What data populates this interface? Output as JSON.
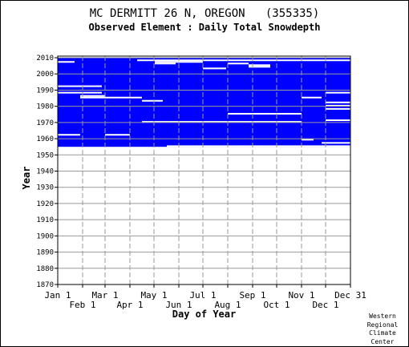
{
  "chart_data": {
    "type": "heatmap",
    "title": "MC DERMITT 26 N, OREGON   (355335)",
    "subtitle": "Observed Element : Daily Total Snowdepth",
    "xlabel": "Day of Year",
    "ylabel": "Year",
    "ylim": [
      1870,
      2011
    ],
    "xlim": [
      1,
      366
    ],
    "y_ticks": [
      2010,
      2000,
      1990,
      1980,
      1970,
      1960,
      1950,
      1940,
      1930,
      1920,
      1910,
      1900,
      1890,
      1880,
      1870
    ],
    "x_ticks_top_row": [
      {
        "label": "Jan 1",
        "day": 1
      },
      {
        "label": "Mar 1",
        "day": 60
      },
      {
        "label": "May 1",
        "day": 121
      },
      {
        "label": "Jul 1",
        "day": 182
      },
      {
        "label": "Sep 1",
        "day": 244
      },
      {
        "label": "Nov 1",
        "day": 305
      },
      {
        "label": "Dec 31",
        "day": 366
      }
    ],
    "x_ticks_bottom_row": [
      {
        "label": "Feb 1",
        "day": 32
      },
      {
        "label": "Apr 1",
        "day": 91
      },
      {
        "label": "Jun 1",
        "day": 152
      },
      {
        "label": "Aug 1",
        "day": 213
      },
      {
        "label": "Oct 1",
        "day": 274
      },
      {
        "label": "Dec 1",
        "day": 335
      }
    ],
    "data_coverage": {
      "start_year": 1955,
      "end_year": 2011,
      "color": "#0000ff"
    },
    "missing_gaps": [
      {
        "year": 2010,
        "start_day": 1,
        "end_day": 366
      },
      {
        "year": 2008,
        "start_day": 100,
        "end_day": 366
      },
      {
        "year": 2007,
        "start_day": 1,
        "end_day": 22
      },
      {
        "year": 2007,
        "start_day": 122,
        "end_day": 148
      },
      {
        "year": 2007,
        "start_day": 148,
        "end_day": 182
      },
      {
        "year": 2006,
        "start_day": 122,
        "end_day": 148
      },
      {
        "year": 2006,
        "start_day": 213,
        "end_day": 239
      },
      {
        "year": 2005,
        "start_day": 239,
        "end_day": 266
      },
      {
        "year": 2004,
        "start_day": 239,
        "end_day": 266
      },
      {
        "year": 2003,
        "start_day": 182,
        "end_day": 211
      },
      {
        "year": 1992,
        "start_day": 1,
        "end_day": 56
      },
      {
        "year": 1988,
        "start_day": 1,
        "end_day": 56
      },
      {
        "year": 1988,
        "start_day": 335,
        "end_day": 366
      },
      {
        "year": 1986,
        "start_day": 29,
        "end_day": 60
      },
      {
        "year": 1985,
        "start_day": 29,
        "end_day": 106
      },
      {
        "year": 1985,
        "start_day": 305,
        "end_day": 330
      },
      {
        "year": 1983,
        "start_day": 106,
        "end_day": 132
      },
      {
        "year": 1982,
        "start_day": 335,
        "end_day": 366
      },
      {
        "year": 1980,
        "start_day": 335,
        "end_day": 366
      },
      {
        "year": 1978,
        "start_day": 335,
        "end_day": 366
      },
      {
        "year": 1975,
        "start_day": 213,
        "end_day": 305
      },
      {
        "year": 1971,
        "start_day": 335,
        "end_day": 366
      },
      {
        "year": 1970,
        "start_day": 106,
        "end_day": 305
      },
      {
        "year": 1962,
        "start_day": 1,
        "end_day": 29
      },
      {
        "year": 1962,
        "start_day": 60,
        "end_day": 91
      },
      {
        "year": 1959,
        "start_day": 305,
        "end_day": 320
      },
      {
        "year": 1957,
        "start_day": 330,
        "end_day": 366
      },
      {
        "year": 1955,
        "start_day": 137,
        "end_day": 366
      }
    ],
    "grid": true,
    "background": "#ffffff",
    "grid_color": "#999999"
  },
  "credit": [
    "Western",
    "Regional",
    "Climate",
    "Center"
  ]
}
